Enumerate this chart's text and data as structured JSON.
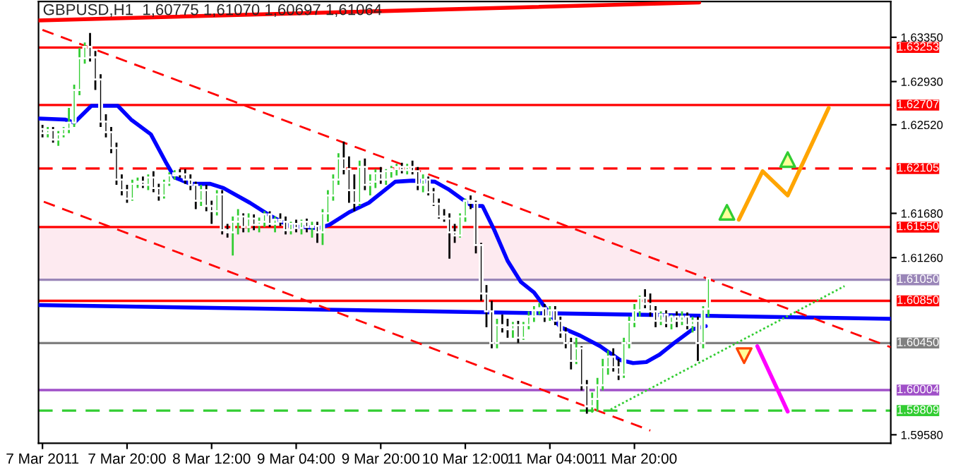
{
  "chart_data": {
    "type": "candlestick",
    "title": "GBPUSD,H1  1,60775 1,61070 1,60697 1,61064",
    "x": [
      "2011-03-07T04:00",
      "2011-03-07T05:00",
      "2011-03-07T06:00",
      "2011-03-07T07:00",
      "2011-03-07T08:00",
      "2011-03-07T09:00",
      "2011-03-07T10:00",
      "2011-03-07T11:00",
      "2011-03-07T12:00",
      "2011-03-07T13:00",
      "2011-03-07T14:00",
      "2011-03-07T15:00",
      "2011-03-07T16:00",
      "2011-03-07T17:00",
      "2011-03-07T18:00",
      "2011-03-07T19:00",
      "2011-03-07T20:00",
      "2011-03-07T21:00",
      "2011-03-07T22:00",
      "2011-03-07T23:00",
      "2011-03-08T00:00",
      "2011-03-08T01:00",
      "2011-03-08T02:00",
      "2011-03-08T03:00",
      "2011-03-08T04:00",
      "2011-03-08T05:00",
      "2011-03-08T06:00",
      "2011-03-08T07:00",
      "2011-03-08T08:00",
      "2011-03-08T09:00",
      "2011-03-08T10:00",
      "2011-03-08T11:00",
      "2011-03-08T12:00",
      "2011-03-08T13:00",
      "2011-03-08T14:00",
      "2011-03-08T15:00",
      "2011-03-08T16:00",
      "2011-03-08T17:00",
      "2011-03-08T18:00",
      "2011-03-08T19:00",
      "2011-03-08T20:00",
      "2011-03-08T21:00",
      "2011-03-08T22:00",
      "2011-03-08T23:00",
      "2011-03-09T00:00",
      "2011-03-09T01:00",
      "2011-03-09T02:00",
      "2011-03-09T03:00",
      "2011-03-09T04:00",
      "2011-03-09T05:00",
      "2011-03-09T06:00",
      "2011-03-09T07:00",
      "2011-03-09T08:00",
      "2011-03-09T09:00",
      "2011-03-09T10:00",
      "2011-03-09T11:00",
      "2011-03-09T12:00",
      "2011-03-09T13:00",
      "2011-03-09T14:00",
      "2011-03-09T15:00",
      "2011-03-09T16:00",
      "2011-03-09T17:00",
      "2011-03-09T18:00",
      "2011-03-09T19:00",
      "2011-03-09T20:00",
      "2011-03-09T21:00",
      "2011-03-09T22:00",
      "2011-03-09T23:00",
      "2011-03-10T00:00",
      "2011-03-10T01:00",
      "2011-03-10T02:00",
      "2011-03-10T03:00",
      "2011-03-10T04:00",
      "2011-03-10T05:00",
      "2011-03-10T06:00",
      "2011-03-10T07:00",
      "2011-03-10T08:00",
      "2011-03-10T09:00",
      "2011-03-10T10:00",
      "2011-03-10T11:00",
      "2011-03-10T12:00",
      "2011-03-10T13:00",
      "2011-03-10T14:00",
      "2011-03-10T15:00",
      "2011-03-10T16:00",
      "2011-03-10T17:00",
      "2011-03-10T18:00",
      "2011-03-10T19:00",
      "2011-03-10T20:00",
      "2011-03-10T21:00",
      "2011-03-10T22:00",
      "2011-03-10T23:00",
      "2011-03-11T00:00",
      "2011-03-11T01:00",
      "2011-03-11T02:00",
      "2011-03-11T03:00",
      "2011-03-11T04:00",
      "2011-03-11T05:00",
      "2011-03-11T06:00",
      "2011-03-11T07:00",
      "2011-03-11T08:00",
      "2011-03-11T09:00",
      "2011-03-11T10:00",
      "2011-03-11T11:00",
      "2011-03-11T12:00",
      "2011-03-11T13:00",
      "2011-03-11T14:00",
      "2011-03-11T15:00",
      "2011-03-11T16:00",
      "2011-03-11T17:00",
      "2011-03-11T18:00",
      "2011-03-11T19:00",
      "2011-03-11T20:00",
      "2011-03-11T21:00",
      "2011-03-11T22:00",
      "2011-03-11T23:00",
      "2011-03-12T00:00",
      "2011-03-12T01:00",
      "2011-03-12T02:00",
      "2011-03-12T03:00",
      "2011-03-12T04:00",
      "2011-03-12T05:00",
      "2011-03-12T06:00",
      "2011-03-12T07:00",
      "2011-03-12T08:00",
      "2011-03-12T09:00",
      "2011-03-12T10:00"
    ],
    "ohlc": [
      [
        1.6248,
        1.6252,
        1.624,
        1.6244
      ],
      [
        1.6244,
        1.625,
        1.624,
        1.6247
      ],
      [
        1.6247,
        1.625,
        1.6235,
        1.6238
      ],
      [
        1.6238,
        1.6246,
        1.6232,
        1.6243
      ],
      [
        1.6243,
        1.625,
        1.624,
        1.6248
      ],
      [
        1.6248,
        1.6268,
        1.6244,
        1.6254
      ],
      [
        1.6254,
        1.629,
        1.625,
        1.6285
      ],
      [
        1.6285,
        1.6325,
        1.628,
        1.6315
      ],
      [
        1.6315,
        1.633,
        1.631,
        1.6326
      ],
      [
        1.6326,
        1.6339,
        1.6312,
        1.6316
      ],
      [
        1.6316,
        1.6322,
        1.6285,
        1.6295
      ],
      [
        1.6295,
        1.63,
        1.625,
        1.6255
      ],
      [
        1.6255,
        1.6262,
        1.624,
        1.6245
      ],
      [
        1.6245,
        1.625,
        1.6225,
        1.623
      ],
      [
        1.623,
        1.6235,
        1.6195,
        1.62
      ],
      [
        1.62,
        1.6205,
        1.6185,
        1.619
      ],
      [
        1.619,
        1.6195,
        1.6178,
        1.6182
      ],
      [
        1.6182,
        1.62,
        1.618,
        1.6196
      ],
      [
        1.6196,
        1.6202,
        1.6192,
        1.6198
      ],
      [
        1.6198,
        1.6203,
        1.6192,
        1.6195
      ],
      [
        1.6195,
        1.6205,
        1.619,
        1.6202
      ],
      [
        1.6202,
        1.6208,
        1.6188,
        1.6192
      ],
      [
        1.6192,
        1.6196,
        1.618,
        1.6185
      ],
      [
        1.6185,
        1.62,
        1.6182,
        1.6197
      ],
      [
        1.6197,
        1.6207,
        1.6194,
        1.6204
      ],
      [
        1.6204,
        1.6209,
        1.62,
        1.6206
      ],
      [
        1.6206,
        1.621,
        1.6202,
        1.6205
      ],
      [
        1.6205,
        1.621,
        1.6196,
        1.62
      ],
      [
        1.62,
        1.6205,
        1.619,
        1.6195
      ],
      [
        1.6195,
        1.6198,
        1.6172,
        1.618
      ],
      [
        1.618,
        1.6195,
        1.6175,
        1.619
      ],
      [
        1.619,
        1.6195,
        1.617,
        1.6175
      ],
      [
        1.6175,
        1.618,
        1.6158,
        1.617
      ],
      [
        1.617,
        1.619,
        1.6166,
        1.6186
      ],
      [
        1.6186,
        1.619,
        1.6148,
        1.6152
      ],
      [
        1.6152,
        1.6158,
        1.6145,
        1.615
      ],
      [
        1.615,
        1.6165,
        1.6128,
        1.616
      ],
      [
        1.616,
        1.6172,
        1.6148,
        1.6165
      ],
      [
        1.6165,
        1.6168,
        1.615,
        1.6155
      ],
      [
        1.6155,
        1.6168,
        1.615,
        1.6163
      ],
      [
        1.6163,
        1.6167,
        1.6152,
        1.6157
      ],
      [
        1.6157,
        1.6164,
        1.615,
        1.616
      ],
      [
        1.616,
        1.617,
        1.6155,
        1.6167
      ],
      [
        1.6167,
        1.617,
        1.6155,
        1.6158
      ],
      [
        1.6158,
        1.6165,
        1.615,
        1.6162
      ],
      [
        1.6162,
        1.6168,
        1.6156,
        1.616
      ],
      [
        1.616,
        1.6165,
        1.6148,
        1.6152
      ],
      [
        1.6152,
        1.616,
        1.6148,
        1.6158
      ],
      [
        1.6158,
        1.6162,
        1.615,
        1.6154
      ],
      [
        1.6154,
        1.6162,
        1.6148,
        1.616
      ],
      [
        1.616,
        1.6163,
        1.615,
        1.6155
      ],
      [
        1.6155,
        1.616,
        1.6145,
        1.6156
      ],
      [
        1.6156,
        1.616,
        1.614,
        1.615
      ],
      [
        1.615,
        1.6172,
        1.6138,
        1.6168
      ],
      [
        1.6168,
        1.619,
        1.616,
        1.6185
      ],
      [
        1.6185,
        1.6205,
        1.618,
        1.62
      ],
      [
        1.62,
        1.6225,
        1.6195,
        1.622
      ],
      [
        1.622,
        1.6236,
        1.6205,
        1.621
      ],
      [
        1.621,
        1.6222,
        1.6178,
        1.619
      ],
      [
        1.619,
        1.6205,
        1.617,
        1.6178
      ],
      [
        1.6178,
        1.6218,
        1.6175,
        1.6212
      ],
      [
        1.6212,
        1.622,
        1.619,
        1.6195
      ],
      [
        1.6195,
        1.6205,
        1.6185,
        1.6198
      ],
      [
        1.6198,
        1.621,
        1.6192,
        1.6206
      ],
      [
        1.6206,
        1.6212,
        1.6196,
        1.62
      ],
      [
        1.62,
        1.621,
        1.6195,
        1.6208
      ],
      [
        1.6208,
        1.6213,
        1.6202,
        1.621
      ],
      [
        1.621,
        1.6215,
        1.6204,
        1.6212
      ],
      [
        1.6212,
        1.6216,
        1.6206,
        1.6209
      ],
      [
        1.6209,
        1.6215,
        1.6205,
        1.6212
      ],
      [
        1.6212,
        1.6218,
        1.6205,
        1.6208
      ],
      [
        1.6208,
        1.6212,
        1.619,
        1.6195
      ],
      [
        1.6195,
        1.6205,
        1.6188,
        1.62
      ],
      [
        1.62,
        1.6203,
        1.6185,
        1.6188
      ],
      [
        1.6188,
        1.6192,
        1.6175,
        1.6177
      ],
      [
        1.6177,
        1.6182,
        1.6163,
        1.6165
      ],
      [
        1.6165,
        1.6172,
        1.616,
        1.6163
      ],
      [
        1.6163,
        1.6168,
        1.6125,
        1.615
      ],
      [
        1.615,
        1.6158,
        1.614,
        1.6147
      ],
      [
        1.6147,
        1.6168,
        1.6145,
        1.6165
      ],
      [
        1.6165,
        1.6182,
        1.616,
        1.618
      ],
      [
        1.618,
        1.6185,
        1.6172,
        1.6178
      ],
      [
        1.6178,
        1.618,
        1.613,
        1.6138
      ],
      [
        1.6138,
        1.614,
        1.6085,
        1.6092
      ],
      [
        1.6092,
        1.61,
        1.606,
        1.6075
      ],
      [
        1.6075,
        1.6085,
        1.604,
        1.6045
      ],
      [
        1.6045,
        1.6068,
        1.604,
        1.6062
      ],
      [
        1.6062,
        1.6072,
        1.6055,
        1.606
      ],
      [
        1.606,
        1.6068,
        1.605,
        1.6058
      ],
      [
        1.6058,
        1.6065,
        1.605,
        1.6062
      ],
      [
        1.6062,
        1.6066,
        1.6045,
        1.605
      ],
      [
        1.605,
        1.6065,
        1.6048,
        1.6062
      ],
      [
        1.6062,
        1.6075,
        1.6058,
        1.607
      ],
      [
        1.607,
        1.608,
        1.6065,
        1.6076
      ],
      [
        1.6076,
        1.6083,
        1.6072,
        1.6078
      ],
      [
        1.6078,
        1.6082,
        1.6065,
        1.607
      ],
      [
        1.607,
        1.608,
        1.6066,
        1.6076
      ],
      [
        1.6076,
        1.608,
        1.6062,
        1.6066
      ],
      [
        1.6066,
        1.607,
        1.605,
        1.6055
      ],
      [
        1.6055,
        1.606,
        1.604,
        1.6045
      ],
      [
        1.6045,
        1.605,
        1.602,
        1.6028
      ],
      [
        1.6028,
        1.605,
        1.6025,
        1.604
      ],
      [
        1.604,
        1.6042,
        1.6,
        1.6005
      ],
      [
        1.6005,
        1.601,
        1.5978,
        1.5985
      ],
      [
        1.5985,
        1.5998,
        1.5979,
        1.5992
      ],
      [
        1.5992,
        1.6012,
        1.598,
        1.6005
      ],
      [
        1.6005,
        1.603,
        1.6,
        1.6022
      ],
      [
        1.6022,
        1.6038,
        1.6015,
        1.6032
      ],
      [
        1.6032,
        1.604,
        1.6018,
        1.6022
      ],
      [
        1.6022,
        1.603,
        1.601,
        1.6015
      ],
      [
        1.6015,
        1.605,
        1.6012,
        1.6045
      ],
      [
        1.6045,
        1.607,
        1.604,
        1.6065
      ],
      [
        1.6065,
        1.6082,
        1.606,
        1.6076
      ],
      [
        1.6076,
        1.609,
        1.607,
        1.6088
      ],
      [
        1.6088,
        1.6096,
        1.6078,
        1.6082
      ],
      [
        1.6082,
        1.6092,
        1.607,
        1.6075
      ],
      [
        1.6075,
        1.608,
        1.606,
        1.6066
      ],
      [
        1.6066,
        1.6075,
        1.6062,
        1.6072
      ],
      [
        1.6072,
        1.6076,
        1.606,
        1.6064
      ],
      [
        1.6064,
        1.6072,
        1.6058,
        1.607
      ],
      [
        1.607,
        1.6075,
        1.606,
        1.6066
      ],
      [
        1.6066,
        1.6075,
        1.6062,
        1.607
      ],
      [
        1.607,
        1.6074,
        1.6058,
        1.6062
      ],
      [
        1.6062,
        1.607,
        1.6055,
        1.6066
      ],
      [
        1.6066,
        1.607,
        1.6028,
        1.6045
      ],
      [
        1.6045,
        1.608,
        1.604,
        1.6077
      ],
      [
        1.60775,
        1.6107,
        1.60697,
        1.61064
      ]
    ],
    "series": [
      {
        "type": "line",
        "color": "#0000ff",
        "x": [
          "2011-03-07T03:15",
          "2011-03-07T08:15",
          "2011-03-07T10:00",
          "2011-03-07T13:15",
          "2011-03-07T18:15",
          "2011-03-07T20:45",
          "2011-03-08T00:30",
          "2011-03-08T03:30",
          "2011-03-08T05:00",
          "2011-03-08T08:00",
          "2011-03-08T11:45",
          "2011-03-08T14:15",
          "2011-03-08T19:15",
          "2011-03-08T23:00",
          "2011-03-09T02:45",
          "2011-03-09T08:15",
          "2011-03-09T10:15",
          "2011-03-09T14:00",
          "2011-03-09T17:45",
          "2011-03-09T22:45",
          "2011-03-10T02:00",
          "2011-03-10T06:15",
          "2011-03-10T08:45",
          "2011-03-10T11:15",
          "2011-03-10T13:15",
          "2011-03-10T15:15",
          "2011-03-10T17:30",
          "2011-03-10T20:00",
          "2011-03-10T22:30",
          "2011-03-11T01:00",
          "2011-03-11T03:30",
          "2011-03-11T06:00",
          "2011-03-11T09:45",
          "2011-03-11T13:30",
          "2011-03-11T17:15",
          "2011-03-11T19:45",
          "2011-03-11T22:15",
          "2011-03-12T00:45",
          "2011-03-12T03:15",
          "2011-03-12T07:00",
          "2011-03-12T09:30"
        ],
        "values": [
          1.6258,
          1.6257,
          1.6254,
          1.627,
          1.627,
          1.6257,
          1.6243,
          1.6215,
          1.6202,
          1.6196,
          1.6196,
          1.6192,
          1.6178,
          1.6166,
          1.6156,
          1.6154,
          1.6157,
          1.6169,
          1.6178,
          1.6198,
          1.6199,
          1.6198,
          1.6191,
          1.6182,
          1.6175,
          1.6175,
          1.6152,
          1.6123,
          1.6103,
          1.6093,
          1.6076,
          1.606,
          1.6052,
          1.6042,
          1.6029,
          1.6026,
          1.6027,
          1.6034,
          1.6044,
          1.6058,
          1.6061
        ]
      },
      {
        "type": "line",
        "color": "#0000ff",
        "x": [
          "2011-03-07T03:15",
          "2011-03-13T20:30"
        ],
        "values": [
          1.6081,
          1.6068
        ]
      },
      {
        "type": "line",
        "color": "#ff0000",
        "line_style": "dashed",
        "x": [
          "2011-03-07T04:00",
          "2011-03-13T20:30"
        ],
        "values": [
          1.6342,
          1.6041
        ]
      },
      {
        "type": "line",
        "color": "#ff0000",
        "line_style": "dashed",
        "x": [
          "2011-03-07T04:15",
          "2011-03-11T23:00"
        ],
        "values": [
          1.6179,
          1.5962
        ]
      },
      {
        "type": "line",
        "color": "#32cd32",
        "line_style": "dotted",
        "x": [
          "2011-03-11T15:30",
          "2011-03-13T11:45"
        ],
        "values": [
          1.5982,
          1.6099
        ]
      },
      {
        "type": "line",
        "color": "#ff0000",
        "x": [
          "2011-03-07T03:15",
          "2011-03-12T08:15"
        ],
        "values": [
          1.6351,
          1.6368
        ]
      },
      {
        "type": "line",
        "color": "#ffa500",
        "x": [
          "2011-03-12T15:45",
          "2011-03-12T20:15",
          "2011-03-13T01:00",
          "2011-03-13T08:45"
        ],
        "values": [
          1.6162,
          1.6208,
          1.6185,
          1.6268
        ]
      },
      {
        "type": "line",
        "color": "#ff00ff",
        "x": [
          "2011-03-12T19:15",
          "2011-03-13T01:00"
        ],
        "values": [
          1.6042,
          1.598
        ]
      },
      {
        "type": "scatter",
        "marker": "triangle",
        "color": "#32cd32",
        "x": [
          "2011-03-12T13:30",
          "2011-03-13T01:00"
        ],
        "values": [
          1.6169,
          1.6219
        ]
      },
      {
        "type": "scatter",
        "marker": "triangle_down",
        "color": "#ff4500",
        "x": [
          "2011-03-12T16:45"
        ],
        "values": [
          1.6033
        ]
      }
    ],
    "ref_lines": [
      {
        "axis": "y",
        "value": 1.63253,
        "label": "1.63253",
        "color": "#ff0000"
      },
      {
        "axis": "y",
        "value": 1.62707,
        "label": "1.62707",
        "color": "#ff0000"
      },
      {
        "axis": "y",
        "value": 1.62105,
        "label": "1.62105",
        "color": "#ff0000",
        "line_style": "dashed"
      },
      {
        "axis": "y",
        "value": 1.6155,
        "label": "1.61550",
        "color": "#ff0000"
      },
      {
        "axis": "y",
        "value": 1.6105,
        "label": "1.61050",
        "color": "#9a86b8"
      },
      {
        "axis": "y",
        "value": 1.6085,
        "label": "1.60850",
        "color": "#ff0000"
      },
      {
        "axis": "y",
        "value": 1.6045,
        "label": "1.60450",
        "color": "#808080"
      },
      {
        "axis": "y",
        "value": 1.60004,
        "label": "1.60004",
        "color": "#a050c8"
      },
      {
        "axis": "y",
        "value": 1.59809,
        "label": "1.59809",
        "color": "#32cd32",
        "line_style": "dashed"
      }
    ],
    "bands": [
      {
        "axis": "y",
        "from": 1.6105,
        "to": 1.6155,
        "color": "#fdeaf0"
      }
    ],
    "xlim": [
      "2011-03-07T03:15",
      "2011-03-13T20:30"
    ],
    "ylim": [
      1.595,
      1.6369
    ],
    "xticks": [
      {
        "value": "2011-03-07T04:00",
        "label": "7 Mar 2011"
      },
      {
        "value": "2011-03-07T20:00",
        "label": "7 Mar 20:00"
      },
      {
        "value": "2011-03-08T12:00",
        "label": "8 Mar 12:00"
      },
      {
        "value": "2011-03-09T04:00",
        "label": "9 Mar 04:00"
      },
      {
        "value": "2011-03-09T20:00",
        "label": "9 Mar 20:00"
      },
      {
        "value": "2011-03-10T12:00",
        "label": "10 Mar 12:00"
      },
      {
        "value": "2011-03-11T04:00",
        "label": "11 Mar 04:00"
      },
      {
        "value": "2011-03-11T20:00",
        "label": "11 Mar 20:00"
      }
    ],
    "yticks": [
      {
        "value": 1.6335,
        "label": "1.63350"
      },
      {
        "value": 1.6293,
        "label": "1.62930"
      },
      {
        "value": 1.6252,
        "label": "1.62520"
      },
      {
        "value": 1.6168,
        "label": "1.61680"
      },
      {
        "value": 1.6126,
        "label": "1.61260"
      },
      {
        "value": 1.5958,
        "label": "1.59580"
      }
    ]
  }
}
